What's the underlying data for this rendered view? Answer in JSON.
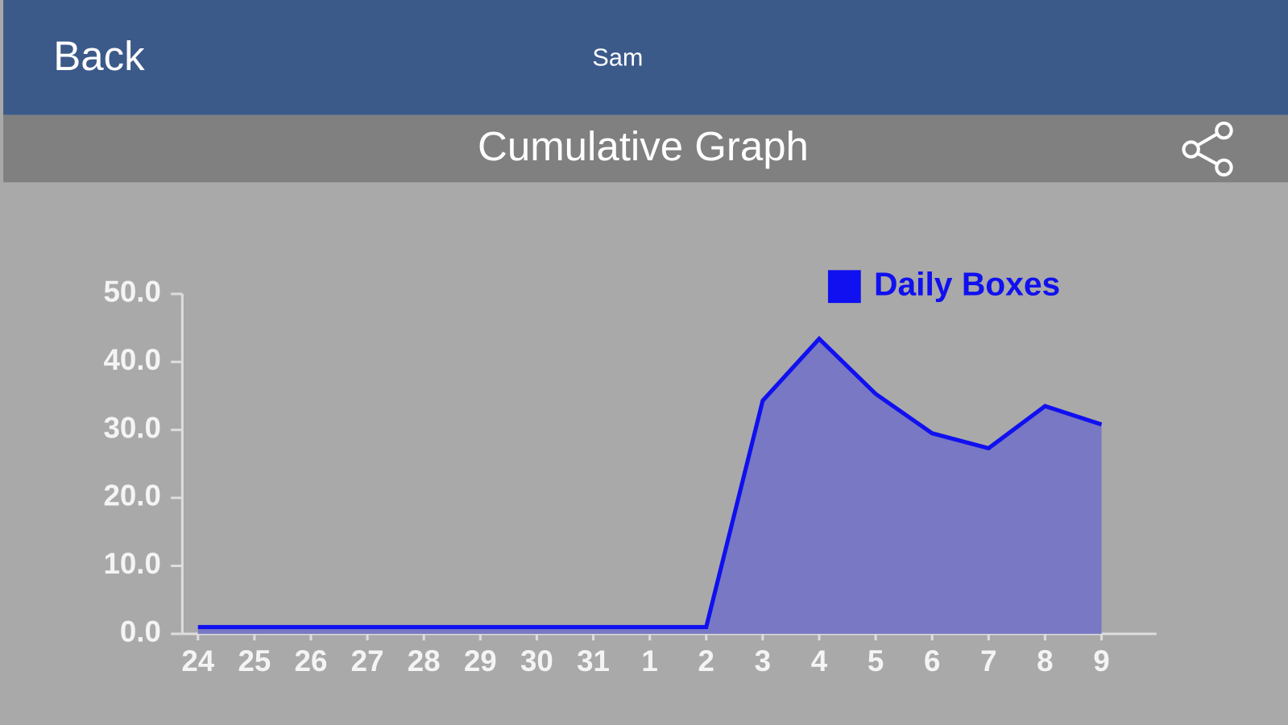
{
  "header": {
    "back": "Back",
    "user": "Sam"
  },
  "toolbar": {
    "title": "Cumulative Graph"
  },
  "chart_data": {
    "type": "area",
    "categories": [
      "24",
      "25",
      "26",
      "27",
      "28",
      "29",
      "30",
      "31",
      "1",
      "2",
      "3",
      "4",
      "5",
      "6",
      "7",
      "8",
      "9"
    ],
    "series": [
      {
        "name": "Daily Boxes",
        "color": "#1010f0",
        "fill": "#7878c4",
        "values": [
          1,
          1,
          1,
          1,
          1,
          1,
          1,
          1,
          1,
          1,
          34.3,
          43.4,
          35.3,
          29.5,
          27.3,
          33.5,
          30.8
        ]
      }
    ],
    "ylim": [
      0,
      50
    ],
    "yticks": [
      {
        "value": 0,
        "label": "0.0"
      },
      {
        "value": 10,
        "label": "10.0"
      },
      {
        "value": 20,
        "label": "20.0"
      },
      {
        "value": 30,
        "label": "30.0"
      },
      {
        "value": 40,
        "label": "40.0"
      },
      {
        "value": 50,
        "label": "50.0"
      }
    ],
    "legend": "top-right"
  }
}
